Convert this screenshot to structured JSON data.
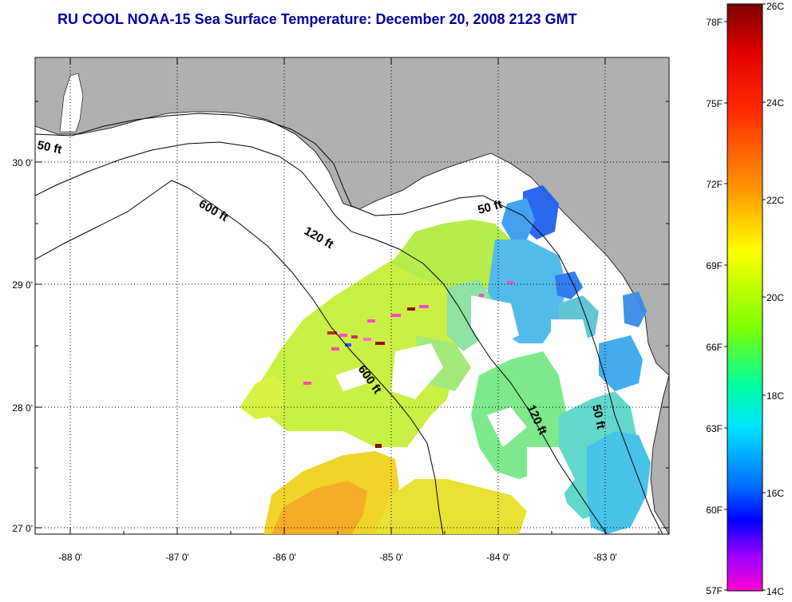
{
  "title": "RU COOL  NOAA-15  Sea Surface Temperature:  December 20, 2008 2123 GMT",
  "colors": {
    "title": "#0000a0",
    "land": "#b0b0b0",
    "water": "#ffffff",
    "contour": "#000000"
  },
  "map": {
    "lat_ticks": [
      "30 0'",
      "29 0'",
      "28 0'",
      "27 0'"
    ],
    "lon_ticks": [
      "-88 0'",
      "-87 0'",
      "-86 0'",
      "-85 0'",
      "-84 0'",
      "-83 0'"
    ],
    "contour_labels": [
      {
        "id": "c50w",
        "text": "50 ft"
      },
      {
        "id": "c600n",
        "text": "600 ft"
      },
      {
        "id": "c120n",
        "text": "120 ft"
      },
      {
        "id": "c50e",
        "text": "50 ft"
      },
      {
        "id": "c600s",
        "text": "600 ft"
      },
      {
        "id": "c120s",
        "text": "120 ft"
      },
      {
        "id": "c50s",
        "text": "50 ft"
      }
    ]
  },
  "colorbar": {
    "fahrenheit_labels": [
      "78F",
      "75F",
      "72F",
      "69F",
      "66F",
      "63F",
      "60F",
      "57F"
    ],
    "celsius_labels": [
      "26C",
      "24C",
      "22C",
      "20C",
      "18C",
      "16C",
      "14C"
    ],
    "stops": [
      "#7a0000",
      "#ff0000",
      "#ff8c00",
      "#ffff00",
      "#7fff00",
      "#00ffff",
      "#0080ff",
      "#0000ff",
      "#8000ff",
      "#ff00d0"
    ]
  }
}
